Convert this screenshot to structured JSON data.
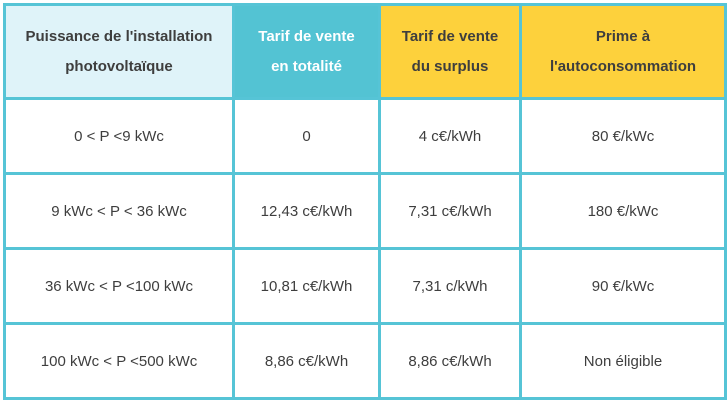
{
  "chart_data": {
    "type": "table",
    "columns": [
      "Puissance de l'installation photovoltaïque",
      "Tarif de vente en totalité",
      "Tarif de vente du surplus",
      "Prime à l'autoconsommation"
    ],
    "rows": [
      [
        "0 < P <9 kWc",
        "0",
        "4 c€/kWh",
        "80 €/kWc"
      ],
      [
        "9 kWc < P < 36 kWc",
        "12,43 c€/kWh",
        "7,31 c€/kWh",
        "180 €/kWc"
      ],
      [
        "36 kWc < P <100 kWc",
        "10,81 c€/kWh",
        "7,31 c/kWh",
        "90 €/kWc"
      ],
      [
        "100 kWc < P <500 kWc",
        "8,86 c€/kWh",
        "8,86 c€/kWh",
        "Non éligible"
      ]
    ],
    "title": "",
    "layout": {
      "grid": true,
      "header_styles": [
        "light-cyan",
        "teal",
        "yellow",
        "yellow"
      ]
    }
  },
  "colors": {
    "border": "#56c4d6",
    "header_power_bg": "#dff3f9",
    "header_total_bg": "#53c3d3",
    "header_total_text": "#ffffff",
    "header_yellow_bg": "#fdd13c",
    "text": "#3e3e3e"
  }
}
